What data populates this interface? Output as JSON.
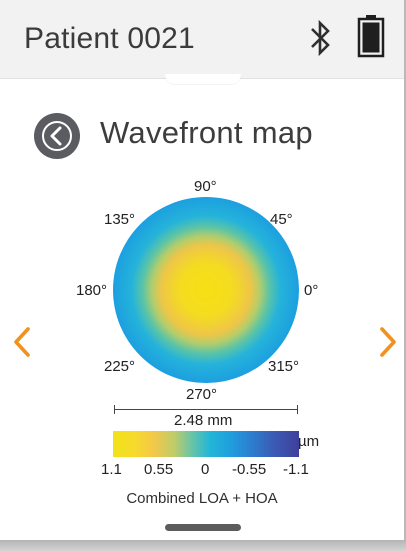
{
  "header": {
    "patient_title": "Patient 0021",
    "bluetooth_icon": "bluetooth-icon",
    "battery_icon": "battery-full-icon"
  },
  "screen": {
    "title": "Wavefront map",
    "back_icon": "chevron-left-icon",
    "prev_icon": "chevron-left-icon",
    "next_icon": "chevron-right-icon"
  },
  "map": {
    "axis_labels": {
      "deg_90": "90°",
      "deg_45": "45°",
      "deg_0": "0°",
      "deg_315": "315°",
      "deg_270": "270°",
      "deg_225": "225°",
      "deg_180": "180°",
      "deg_135": "135°"
    },
    "scale_label": "2.48 mm"
  },
  "legend": {
    "unit": "µm",
    "ticks": [
      "1.1",
      "0.55",
      "0",
      "-0.55",
      "-1.1"
    ],
    "caption": "Combined LOA + HOA"
  },
  "colors": {
    "accent_orange": "#f0921e",
    "center_yellow": "#f4df14",
    "edge_blue": "#1f9fe0",
    "button_dark": "#5b5b62"
  }
}
